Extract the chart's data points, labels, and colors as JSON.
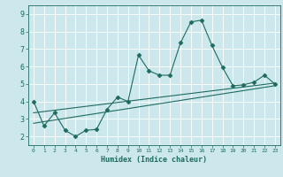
{
  "xlabel": "Humidex (Indice chaleur)",
  "ylabel": "",
  "bg_color": "#cce8ec",
  "grid_color": "#ffffff",
  "line_color": "#1e6b5e",
  "xlim": [
    -0.5,
    23.5
  ],
  "ylim": [
    1.5,
    9.5
  ],
  "xticks": [
    0,
    1,
    2,
    3,
    4,
    5,
    6,
    7,
    8,
    9,
    10,
    11,
    12,
    13,
    14,
    15,
    16,
    17,
    18,
    19,
    20,
    21,
    22,
    23
  ],
  "yticks": [
    2,
    3,
    4,
    5,
    6,
    7,
    8,
    9
  ],
  "main_x": [
    0,
    1,
    2,
    3,
    4,
    5,
    6,
    7,
    8,
    9,
    10,
    11,
    12,
    13,
    14,
    15,
    16,
    17,
    18,
    19,
    20,
    21,
    22,
    23
  ],
  "main_y": [
    4.0,
    2.6,
    3.35,
    2.35,
    2.0,
    2.35,
    2.4,
    3.55,
    4.25,
    4.0,
    6.65,
    5.75,
    5.5,
    5.5,
    7.35,
    8.55,
    8.65,
    7.2,
    5.95,
    4.9,
    4.95,
    5.1,
    5.5,
    5.0
  ],
  "trend1_x": [
    0,
    23
  ],
  "trend1_y": [
    3.35,
    5.05
  ],
  "trend2_x": [
    0,
    23
  ],
  "trend2_y": [
    2.75,
    4.9
  ],
  "marker": "D",
  "markersize": 2.5,
  "linewidth": 0.8,
  "xlabel_fontsize": 6.0,
  "xtick_fontsize": 4.5,
  "ytick_fontsize": 6.0
}
